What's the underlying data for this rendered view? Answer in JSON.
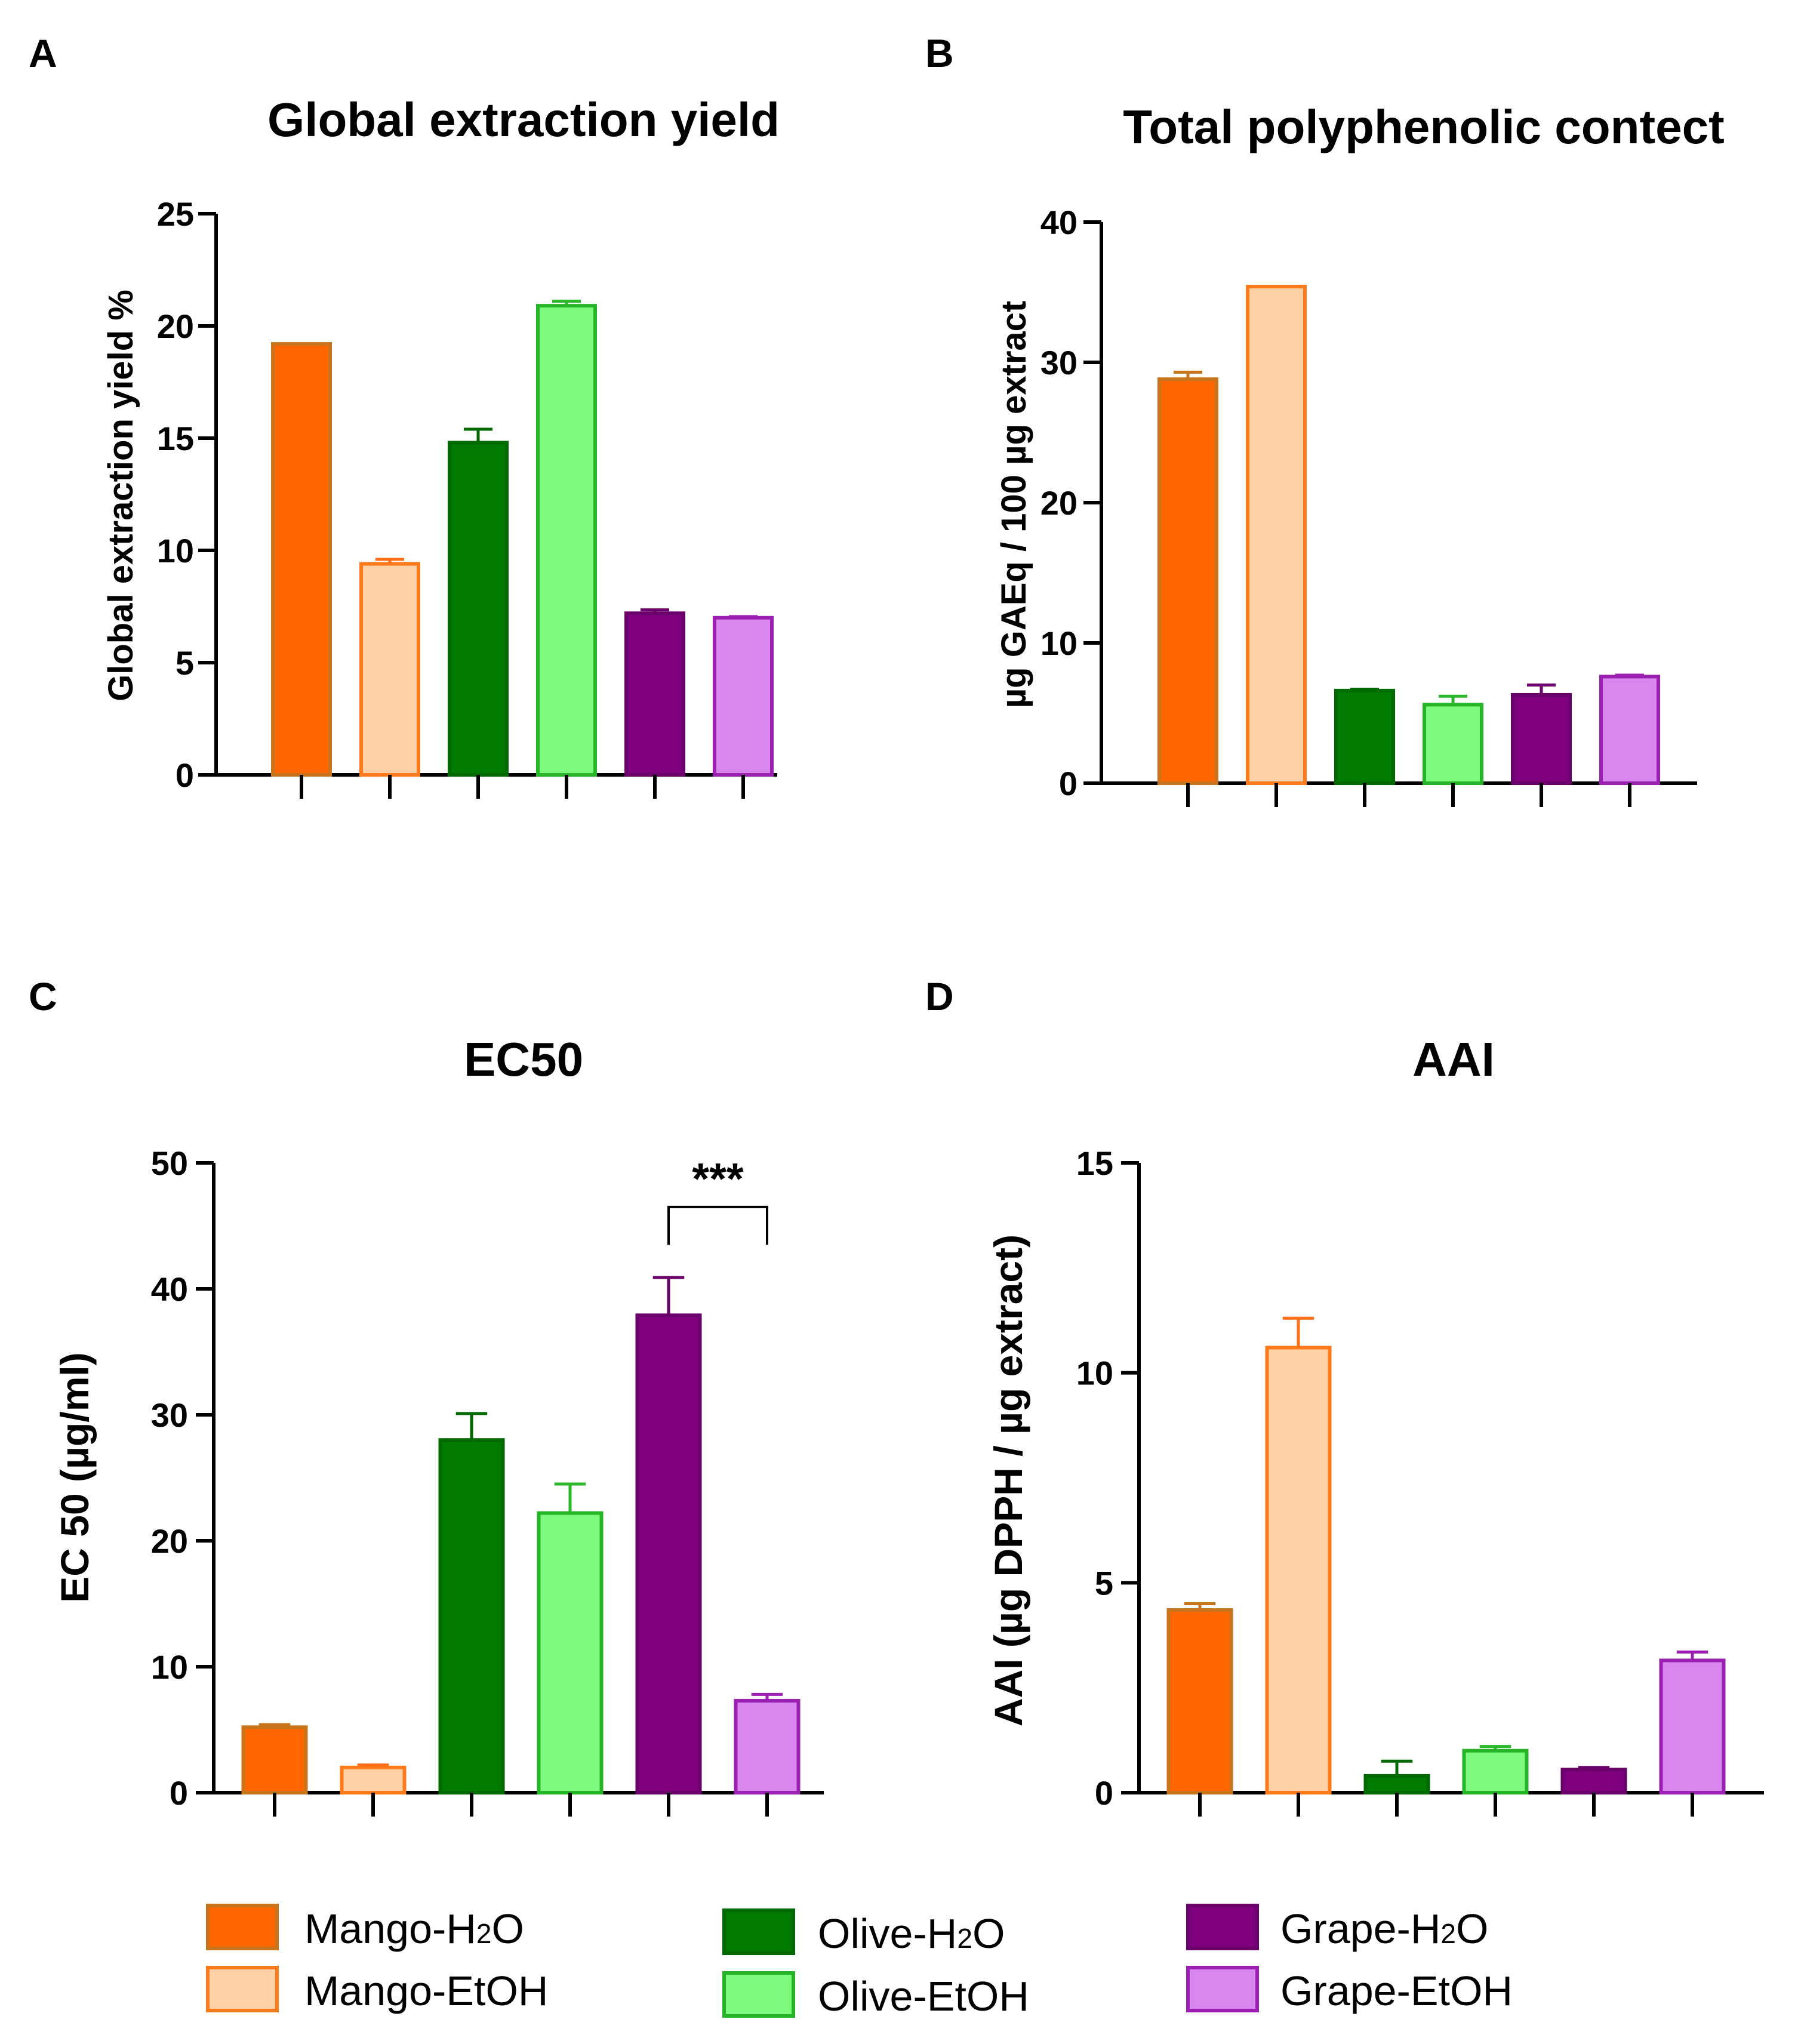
{
  "colors": {
    "fills": [
      "#FF6600",
      "#FED2A6",
      "#007A00",
      "#7EFB7E",
      "#7E007E",
      "#D986EE"
    ],
    "strokes": [
      "#C8741C",
      "#FF7A1A",
      "#006A00",
      "#26B526",
      "#6A006A",
      "#9B1FB0"
    ],
    "errorbars": [
      "#C8741C",
      "#FF6F1A",
      "#006A00",
      "#2AB82A",
      "#6A006A",
      "#9B1FB0"
    ]
  },
  "legend": [
    {
      "base": "Mango-H",
      "sub": "2",
      "tail": "O"
    },
    {
      "base": "Mango-EtOH",
      "sub": "",
      "tail": ""
    },
    {
      "base": "Olive-H",
      "sub": "2",
      "tail": "O"
    },
    {
      "base": "Olive-EtOH",
      "sub": "",
      "tail": ""
    },
    {
      "base": "Grape-H",
      "sub": "2",
      "tail": "O"
    },
    {
      "base": "Grape-EtOH",
      "sub": "",
      "tail": ""
    }
  ],
  "chart_data": [
    {
      "panel": "A",
      "type": "bar",
      "title": "Global extraction yield",
      "ylabel": "Global extraction yield %",
      "categories": [
        "Mango-H2O",
        "Mango-EtOH",
        "Olive-H2O",
        "Olive-EtOH",
        "Grape-H2O",
        "Grape-EtOH"
      ],
      "values": [
        19.2,
        9.4,
        14.8,
        20.9,
        7.2,
        7.0
      ],
      "errors": [
        0.0,
        0.2,
        0.6,
        0.2,
        0.15,
        0.05
      ],
      "ylim": [
        0,
        25
      ],
      "yticks": [
        0,
        5,
        10,
        15,
        20,
        25
      ],
      "ytick_labels": [
        "0",
        "5",
        "10",
        "15",
        "20",
        "25"
      ]
    },
    {
      "panel": "B",
      "type": "bar",
      "title": "Total polyphenolic contect",
      "ylabel": "µg GAEq / 100 µg extract",
      "categories": [
        "Mango-H2O",
        "Mango-EtOH",
        "Olive-H2O",
        "Olive-EtOH",
        "Grape-H2O",
        "Grape-EtOH"
      ],
      "values": [
        28.8,
        35.4,
        6.6,
        5.6,
        6.3,
        7.6
      ],
      "errors": [
        0.5,
        0.0,
        0.1,
        0.6,
        0.7,
        0.1
      ],
      "ylim": [
        0,
        40
      ],
      "yticks": [
        0,
        10,
        20,
        30,
        40
      ],
      "ytick_labels": [
        "0",
        "10",
        "20",
        "30",
        "40"
      ]
    },
    {
      "panel": "C",
      "type": "bar",
      "title": "EC50",
      "ylabel": "EC 50 (µg/ml)",
      "categories": [
        "Mango-H2O",
        "Mango-EtOH",
        "Olive-H2O",
        "Olive-EtOH",
        "Grape-H2O",
        "Grape-EtOH"
      ],
      "values": [
        5.2,
        2.0,
        28.0,
        22.2,
        37.9,
        7.3
      ],
      "errors": [
        0.2,
        0.2,
        2.1,
        2.3,
        3.0,
        0.5
      ],
      "ylim": [
        0,
        50
      ],
      "yticks": [
        0,
        10,
        20,
        30,
        40,
        50
      ],
      "ytick_labels": [
        "0",
        "10",
        "20",
        "30",
        "40",
        "50"
      ],
      "annotation": {
        "text": "***",
        "from": 4,
        "to": 5,
        "y": 46.5
      }
    },
    {
      "panel": "D",
      "type": "bar",
      "title": "AAI",
      "ylabel": "AAI (µg DPPH / µg extract)",
      "categories": [
        "Mango-H2O",
        "Mango-EtOH",
        "Olive-H2O",
        "Olive-EtOH",
        "Grape-H2O",
        "Grape-EtOH"
      ],
      "values": [
        4.35,
        10.6,
        0.4,
        1.0,
        0.55,
        3.15
      ],
      "errors": [
        0.15,
        0.7,
        0.35,
        0.1,
        0.05,
        0.2
      ],
      "ylim": [
        0,
        15
      ],
      "yticks": [
        0,
        5,
        10,
        15
      ],
      "ytick_labels": [
        "0",
        "5",
        "10",
        "15"
      ]
    }
  ]
}
